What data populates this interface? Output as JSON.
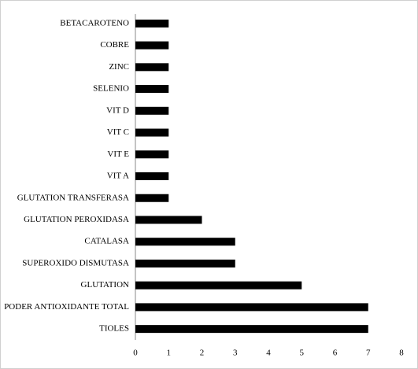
{
  "chart_data": {
    "type": "hbar",
    "categories": [
      "BETACAROTENO",
      "COBRE",
      "ZINC",
      "SELENIO",
      "VIT D",
      "VIT C",
      "VIT E",
      "VIT A",
      "GLUTATION TRANSFERASA",
      "GLUTATION PEROXIDASA",
      "CATALASA",
      "SUPEROXIDO DISMUTASA",
      "GLUTATION",
      "PODER ANTIOXIDANTE TOTAL",
      "TIOLES"
    ],
    "values": [
      1,
      1,
      1,
      1,
      1,
      1,
      1,
      1,
      1,
      2,
      3,
      3,
      5,
      7,
      7
    ],
    "color": "#000000",
    "xlim": [
      0,
      8
    ],
    "xticks": [
      0,
      1,
      2,
      3,
      4,
      5,
      6,
      7,
      8
    ]
  }
}
